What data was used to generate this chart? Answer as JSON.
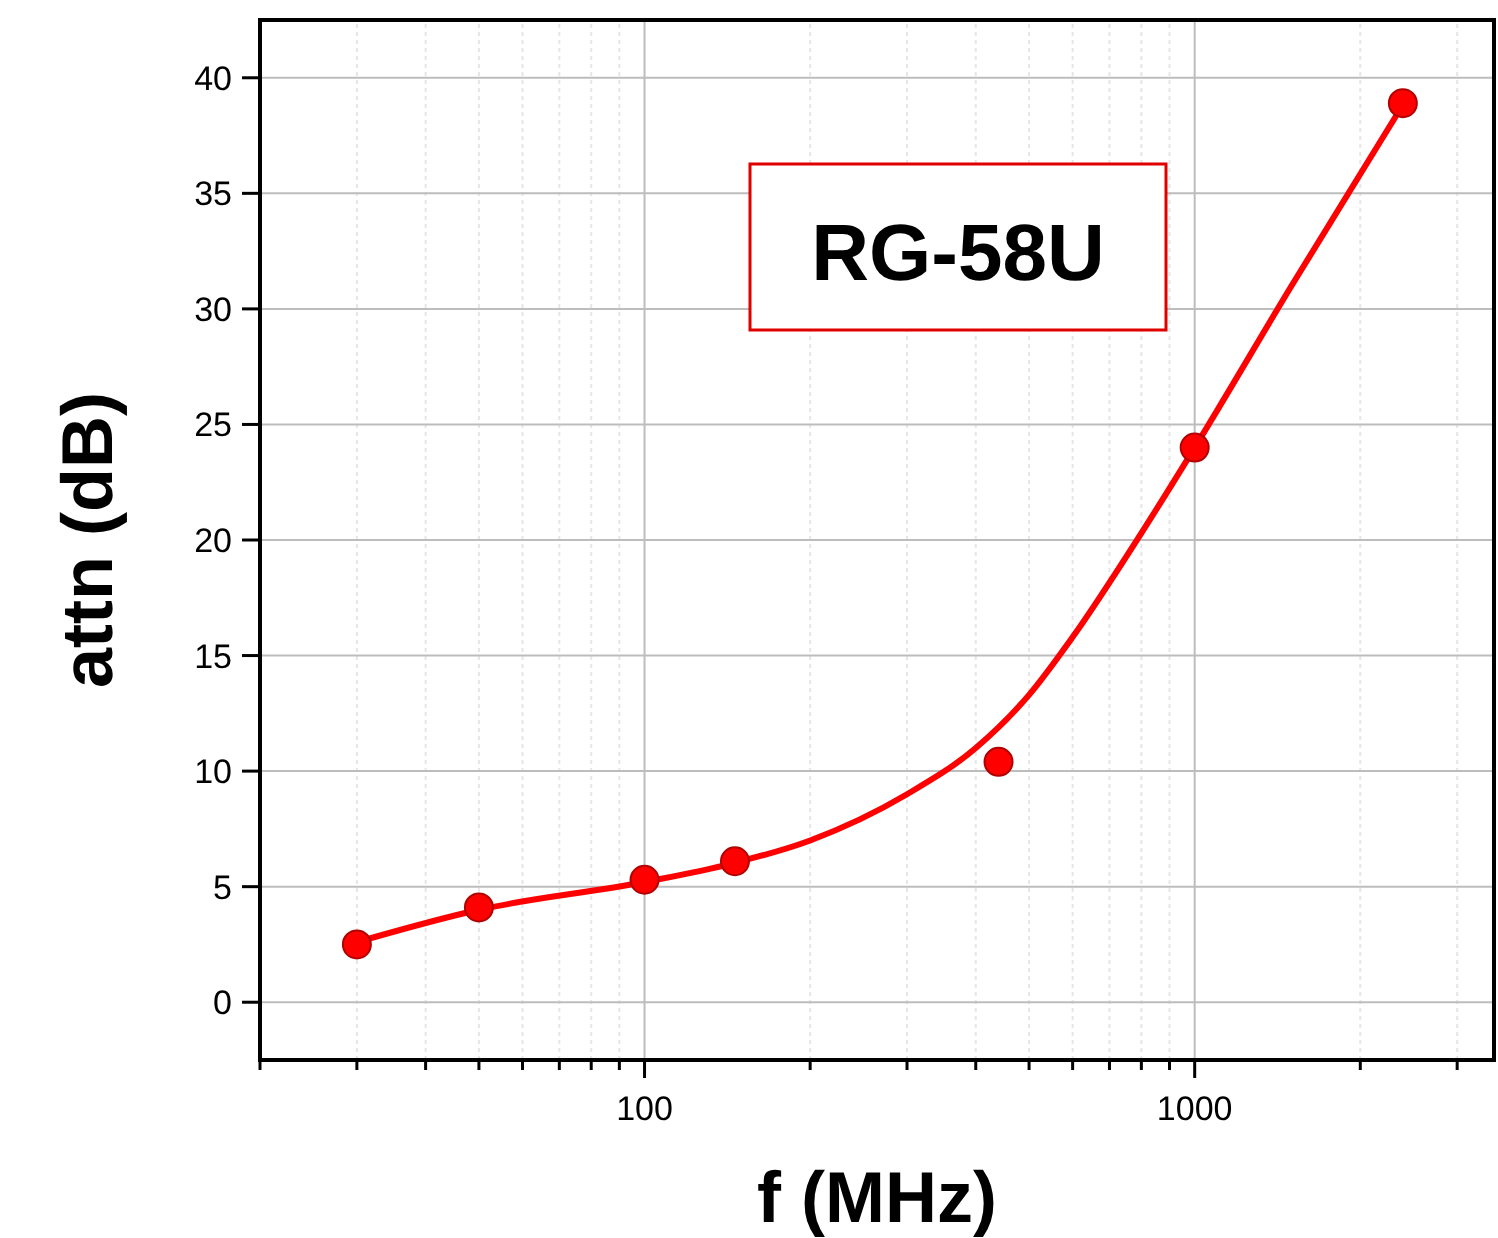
{
  "chart_data": {
    "type": "scatter",
    "xlabel": "f (MHz)",
    "ylabel": "attn (dB)",
    "log": "x",
    "xlim": [
      20,
      3500
    ],
    "ylim": [
      -2.5,
      42.5
    ],
    "xticks": [
      {
        "value": 20,
        "label": null
      },
      {
        "value": 30,
        "label": null
      },
      {
        "value": 40,
        "label": null
      },
      {
        "value": 50,
        "label": null
      },
      {
        "value": 60,
        "label": null
      },
      {
        "value": 70,
        "label": null
      },
      {
        "value": 80,
        "label": null
      },
      {
        "value": 90,
        "label": null
      },
      100,
      {
        "value": 200,
        "label": null
      },
      {
        "value": 300,
        "label": null
      },
      {
        "value": 400,
        "label": null
      },
      {
        "value": 500,
        "label": null
      },
      {
        "value": 600,
        "label": null
      },
      {
        "value": 700,
        "label": null
      },
      {
        "value": 800,
        "label": null
      },
      {
        "value": 900,
        "label": null
      },
      1000,
      {
        "value": 2000,
        "label": null
      },
      {
        "value": 3000,
        "label": null
      }
    ],
    "yticks": [
      0,
      5,
      10,
      15,
      20,
      25,
      30,
      35,
      40
    ],
    "grid": true,
    "annotations": [
      "RG-58U"
    ],
    "series": [
      {
        "type": "line",
        "color": "#ff0000",
        "marker": "none",
        "line_style": "solid",
        "x": [
          30,
          50,
          100,
          144,
          200,
          300,
          400,
          500,
          600,
          800,
          1000,
          1500,
          2400
        ],
        "values": [
          2.6,
          4.0,
          5.2,
          6.0,
          7.0,
          9.0,
          11.0,
          13.3,
          15.8,
          20.3,
          24.0,
          31.0,
          38.9
        ]
      },
      {
        "color": "#ff0000",
        "marker": "circle",
        "x": [
          30,
          50,
          100,
          146,
          440,
          1000,
          2390
        ],
        "values": [
          2.5,
          4.1,
          5.3,
          6.1,
          10.4,
          24.0,
          38.9
        ]
      }
    ]
  }
}
